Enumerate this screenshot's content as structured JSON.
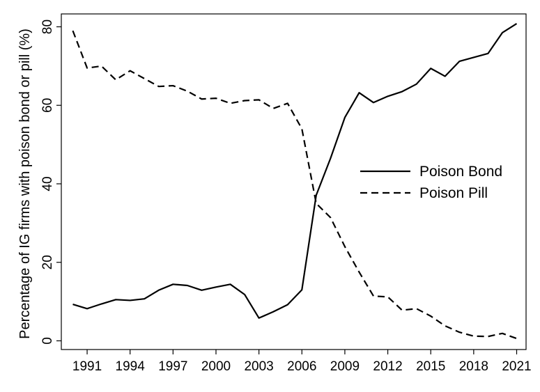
{
  "chart_data": {
    "type": "line",
    "title": "",
    "xlabel": "",
    "ylabel": "Percentage of IG firms with poison bond or pill (%)",
    "xlim": [
      1990,
      2021
    ],
    "ylim": [
      0,
      80
    ],
    "x_ticks": [
      "1991",
      "1994",
      "1997",
      "2000",
      "2003",
      "2006",
      "2009",
      "2012",
      "2015",
      "2018",
      "2021"
    ],
    "y_ticks": [
      "0",
      "20",
      "40",
      "60",
      "80"
    ],
    "grid": false,
    "legend_position": "right",
    "x": [
      1990,
      1991,
      1992,
      1993,
      1994,
      1995,
      1996,
      1997,
      1998,
      1999,
      2000,
      2001,
      2002,
      2003,
      2004,
      2005,
      2006,
      2007,
      2008,
      2009,
      2010,
      2011,
      2012,
      2013,
      2014,
      2015,
      2016,
      2017,
      2018,
      2019,
      2020,
      2021
    ],
    "series": [
      {
        "name": "Poison Bond",
        "style": "solid",
        "color": "#000000",
        "values": [
          9.3,
          8.2,
          9.4,
          10.5,
          10.3,
          10.7,
          12.9,
          14.4,
          14.1,
          12.9,
          13.7,
          14.4,
          11.8,
          5.8,
          7.4,
          9.2,
          13.0,
          37.1,
          46.5,
          56.9,
          63.2,
          60.7,
          62.3,
          63.5,
          65.4,
          69.4,
          67.4,
          71.2,
          72.2,
          73.2,
          78.5,
          80.8
        ]
      },
      {
        "name": "Poison Pill",
        "style": "dashed",
        "color": "#000000",
        "values": [
          79.0,
          69.5,
          70.0,
          66.5,
          68.8,
          66.8,
          64.8,
          65.0,
          63.6,
          61.6,
          61.8,
          60.5,
          61.2,
          61.4,
          59.2,
          60.5,
          54.0,
          35.0,
          31.4,
          24.0,
          17.5,
          11.4,
          11.2,
          7.8,
          8.2,
          6.3,
          3.8,
          2.2,
          1.2,
          1.1,
          1.9,
          0.6
        ]
      }
    ]
  }
}
